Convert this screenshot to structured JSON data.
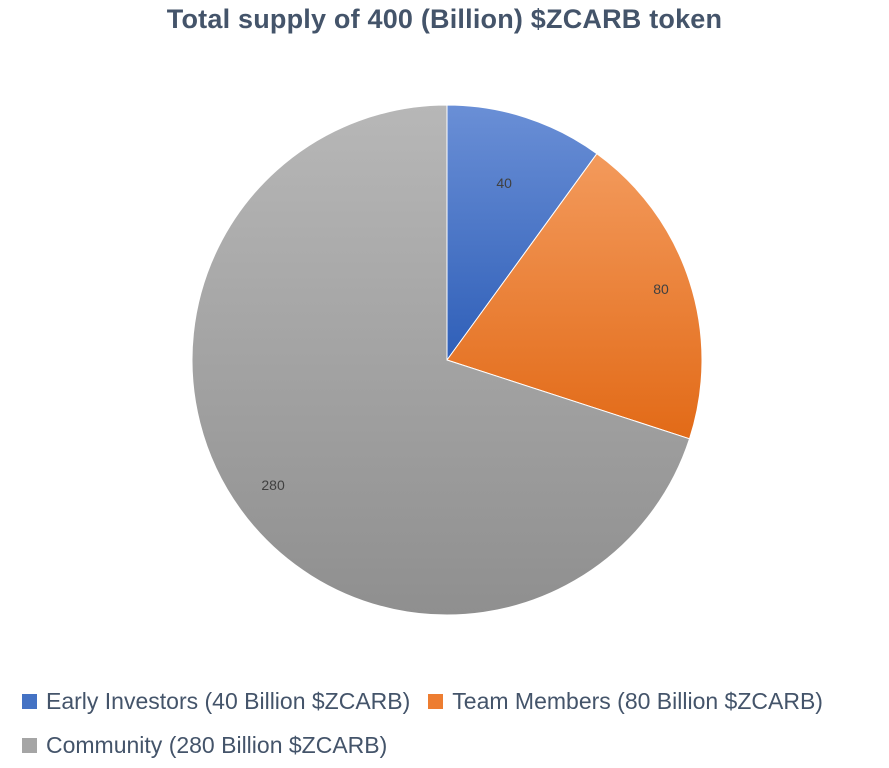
{
  "chart_data": {
    "type": "pie",
    "title": "Total supply of 400 (Billion) $ZCARB token",
    "categories": [
      "Early Investors (40 Billion $ZCARB)",
      "Team Members (80 Billion $ZCARB)",
      "Community (280 Billion $ZCARB)"
    ],
    "values": [
      40,
      80,
      280
    ],
    "data_labels": [
      "40",
      "80",
      "280"
    ],
    "colors": [
      "#4472c4",
      "#ed7d31",
      "#a5a5a5"
    ],
    "start_angle": "12 o'clock",
    "direction": "clockwise",
    "legend_position": "bottom"
  }
}
